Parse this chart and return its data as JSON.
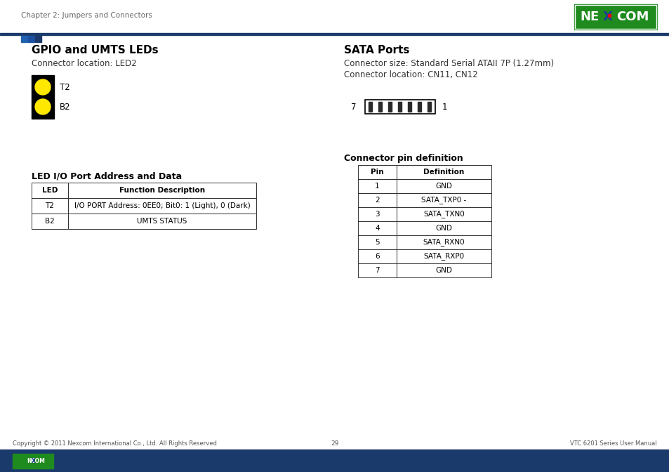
{
  "page_title": "Chapter 2: Jumpers and Connectors",
  "page_number": "29",
  "footer_right": "VTC 6201 Series User Manual",
  "footer_left": "Copyright © 2011 Nexcom International Co., Ltd. All Rights Reserved",
  "bg_color": "#ffffff",
  "header_line_color": "#1a3a6b",
  "square_colors": [
    "#1a5ea8",
    "#1a5ea8",
    "#1a3a6b"
  ],
  "footer_bar_color": "#1a3a6b",
  "left_section_title": "GPIO and UMTS LEDs",
  "left_connector_label": "Connector location: LED2",
  "led_table_title": "LED I/O Port Address and Data",
  "led_table_headers": [
    "LED",
    "Function Description"
  ],
  "led_table_rows": [
    [
      "T2",
      "I/O PORT Address: 0EE0; Bit0: 1 (Light), 0 (Dark)"
    ],
    [
      "B2",
      "UMTS STATUS"
    ]
  ],
  "right_section_title": "SATA Ports",
  "right_connector_size": "Connector size: Standard Serial ATAII 7P (1.27mm)",
  "right_connector_location": "Connector location: CN11, CN12",
  "connector_pin_title": "Connector pin definition",
  "connector_pin_headers": [
    "Pin",
    "Definition"
  ],
  "connector_pin_rows": [
    [
      "1",
      "GND"
    ],
    [
      "2",
      "SATA_TXP0 -"
    ],
    [
      "3",
      "SATA_TXN0"
    ],
    [
      "4",
      "GND"
    ],
    [
      "5",
      "SATA_RXN0"
    ],
    [
      "6",
      "SATA_RXP0"
    ],
    [
      "7",
      "GND"
    ]
  ]
}
